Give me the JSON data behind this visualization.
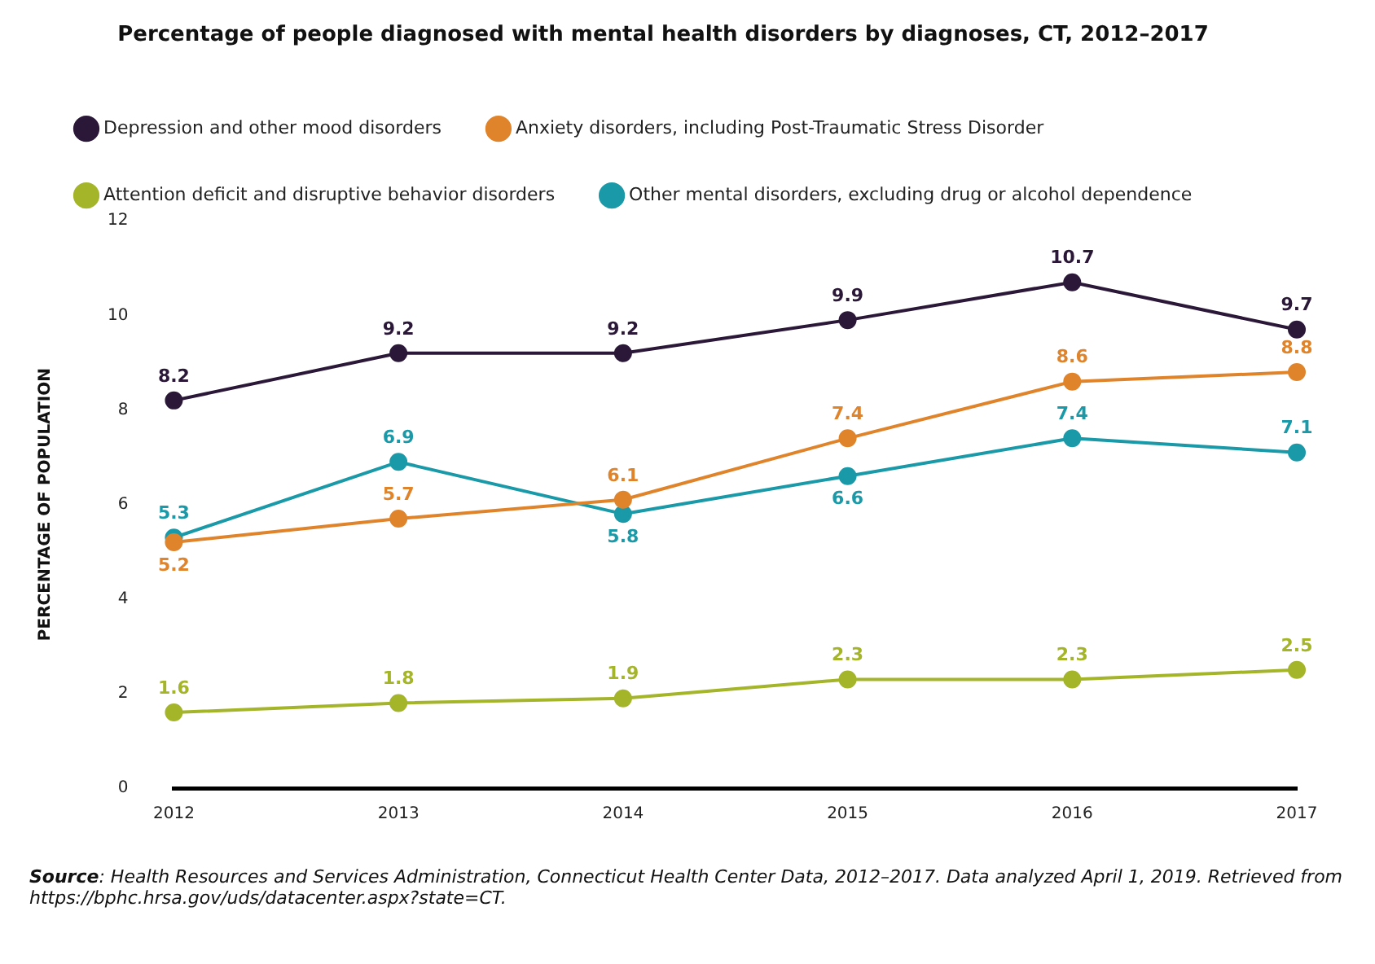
{
  "chart_data": {
    "type": "line",
    "title": "Percentage of people diagnosed with mental health disorders by diagnoses, CT, 2012–2017",
    "ylabel": "PERCENTAGE OF POPULATION",
    "categories": [
      "2012",
      "2013",
      "2014",
      "2015",
      "2016",
      "2017"
    ],
    "series": [
      {
        "name": "Depression and other mood disorders",
        "color": "#2b1838",
        "values": [
          8.2,
          9.2,
          9.2,
          9.9,
          10.7,
          9.7
        ]
      },
      {
        "name": "Anxiety disorders, including Post-Traumatic Stress Disorder",
        "color": "#e0842c",
        "values": [
          5.2,
          5.7,
          6.1,
          7.4,
          8.6,
          8.8
        ]
      },
      {
        "name": "Attention deficit and disruptive behavior disorders",
        "color": "#a4b52a",
        "values": [
          1.6,
          1.8,
          1.9,
          2.3,
          2.3,
          2.5
        ]
      },
      {
        "name": "Other mental disorders, excluding drug or alcohol dependence",
        "color": "#1a9aa8",
        "values": [
          5.3,
          6.9,
          5.8,
          6.6,
          7.4,
          7.1
        ]
      }
    ],
    "ylim": [
      0,
      12
    ],
    "yticks": [
      0,
      2,
      4,
      6,
      8,
      10,
      12
    ],
    "grid": false,
    "legend": "top",
    "marker": "circle",
    "line_style": "solid",
    "data_labels": true,
    "annotations": [
      "Source: Health Resources and Services Administration, Connecticut Health Center Data, 2012–2017. Data analyzed April 1, 2019. Retrieved from https://bphc.hrsa.gov/uds/datacenter.aspx?state=CT."
    ]
  }
}
